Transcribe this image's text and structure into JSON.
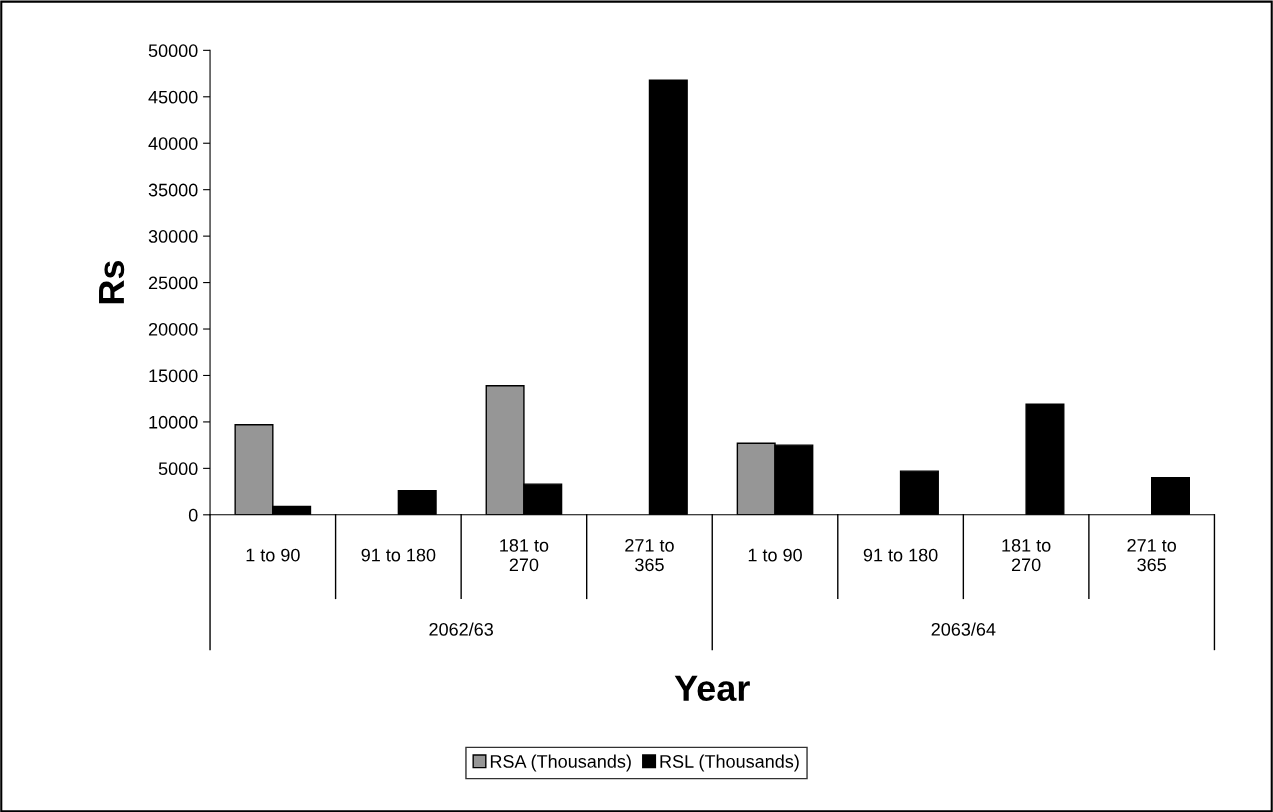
{
  "chart_data": {
    "type": "bar",
    "xlabel": "Year",
    "ylabel": "Rs",
    "categories": [
      "1 to 90",
      "91 to 180",
      "181 to 270",
      "271 to 365",
      "1 to 90",
      "91 to 180",
      "181 to 270",
      "271 to 365"
    ],
    "annotations": [
      "2062/63",
      "2063/64"
    ],
    "series": [
      {
        "name": "RSA (Thousands)",
        "color": "#969696",
        "values": [
          9700,
          null,
          13900,
          null,
          7700,
          null,
          null,
          null
        ]
      },
      {
        "name": "RSL (Thousands)",
        "color": "#000000",
        "values": [
          900,
          2600,
          3300,
          46800,
          7500,
          4700,
          11900,
          4000
        ]
      }
    ],
    "ylim": [
      0,
      50000
    ],
    "yticks": [
      0,
      5000,
      10000,
      15000,
      20000,
      25000,
      30000,
      35000,
      40000,
      45000,
      50000
    ],
    "grid": false,
    "legend": "bottom"
  }
}
